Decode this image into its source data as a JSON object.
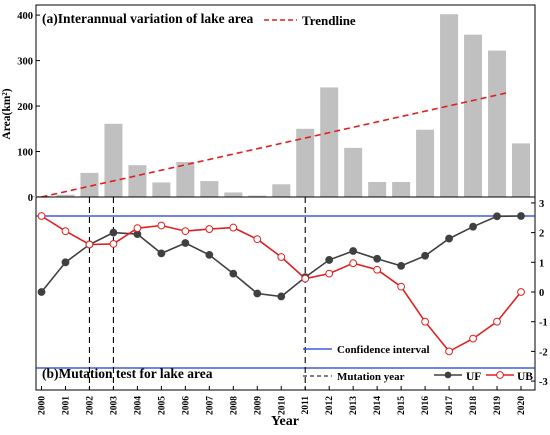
{
  "chart_data": [
    {
      "type": "bar",
      "title": "(a)Interannual variation of lake area",
      "xlabel": "",
      "ylabel": "Area(km²)",
      "ylim": [
        0,
        420
      ],
      "yticks": [
        0,
        100,
        200,
        300,
        400
      ],
      "grid": false,
      "bar_color": "#c0c0c0",
      "categories": [
        "2000",
        "2001",
        "2002",
        "2003",
        "2004",
        "2005",
        "2006",
        "2007",
        "2008",
        "2009",
        "2010",
        "2011",
        "2012",
        "2013",
        "2014",
        "2015",
        "2016",
        "2017",
        "2018",
        "2019",
        "2020"
      ],
      "values": [
        2,
        5,
        53,
        161,
        70,
        32,
        77,
        35,
        10,
        3,
        28,
        150,
        241,
        108,
        33,
        33,
        148,
        402,
        357,
        322,
        118
      ],
      "trendline": {
        "name": "Trendline",
        "color": "#e02020",
        "start": [
          2000,
          0
        ],
        "end": [
          2019.5,
          230
        ]
      },
      "legend": [
        "Trendline"
      ]
    },
    {
      "type": "line",
      "title": "(b)Mutation test for lake area",
      "xlabel": "Year",
      "ylabel": "",
      "ylim": [
        -3.2,
        3.2
      ],
      "yticks": [
        -3,
        -2,
        -1,
        0,
        1,
        2,
        3
      ],
      "grid": false,
      "x": [
        "2000",
        "2001",
        "2002",
        "2003",
        "2004",
        "2005",
        "2006",
        "2007",
        "2008",
        "2009",
        "2010",
        "2011",
        "2012",
        "2013",
        "2014",
        "2015",
        "2016",
        "2017",
        "2018",
        "2019",
        "2020"
      ],
      "series": [
        {
          "name": "UF",
          "color": "#404040",
          "marker": "filled-circle",
          "values": [
            0.0,
            1.0,
            1.6,
            2.0,
            1.95,
            1.3,
            1.65,
            1.25,
            0.62,
            -0.05,
            -0.15,
            0.5,
            1.08,
            1.38,
            1.12,
            0.88,
            1.22,
            1.8,
            2.2,
            2.55,
            2.56
          ]
        },
        {
          "name": "UB",
          "color": "#e02020",
          "marker": "open-circle",
          "values": [
            2.56,
            2.05,
            1.6,
            1.62,
            2.15,
            2.24,
            2.05,
            2.12,
            2.17,
            1.78,
            1.18,
            0.45,
            0.62,
            0.97,
            0.75,
            0.18,
            -1.0,
            -2.0,
            -1.57,
            -1.0,
            0.0
          ]
        }
      ],
      "confidence_interval": {
        "name": "Confidence interval",
        "color": "#1a3bd6",
        "upper": 2.56,
        "lower": -2.56
      },
      "mutation_years": {
        "name": "Mutation year",
        "values": [
          2002,
          2003,
          2011
        ]
      },
      "legend": [
        "Confidence interval",
        "Mutation year",
        "UF",
        "UB"
      ]
    }
  ]
}
